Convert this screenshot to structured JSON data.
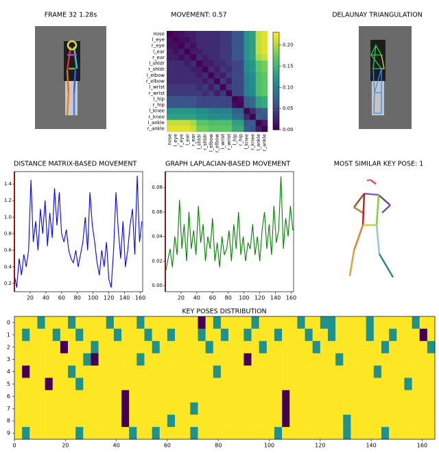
{
  "images": [
    {
      "title": "FRAME 32 1.28s"
    },
    {
      "title": "DELAUNAY TRIANGULATION"
    },
    {
      "title": "MOST SIMILAR KEY POSE: 1"
    }
  ],
  "chart_data": [
    {
      "type": "heatmap",
      "title": "MOVEMENT: 0.57",
      "labels": [
        "nose",
        "l_eye",
        "r_eye",
        "l_ear",
        "r_ear",
        "l_shldr",
        "r_shldr",
        "l_elbow",
        "r_elbow",
        "l_wrist",
        "r_wrist",
        "l_hip",
        "r_hip",
        "l_knee",
        "r_knee",
        "l_ankle",
        "r_ankle"
      ],
      "colormap": "viridis",
      "clim": [
        0,
        0.23
      ],
      "colorbar": true,
      "cticks": [
        {
          "value": 0,
          "label": "0.00"
        },
        0.05,
        {
          "value": 0.1,
          "label": "0.10"
        },
        0.15,
        {
          "value": 0.2,
          "label": "0.20"
        }
      ],
      "z": [
        [
          0,
          0.01,
          0.01,
          0.02,
          0.02,
          0.03,
          0.03,
          0.03,
          0.03,
          0.04,
          0.04,
          0.06,
          0.06,
          0.12,
          0.13,
          0.21,
          0.22
        ],
        [
          0.01,
          0,
          0.01,
          0.01,
          0.02,
          0.03,
          0.03,
          0.03,
          0.03,
          0.04,
          0.04,
          0.06,
          0.06,
          0.12,
          0.13,
          0.21,
          0.22
        ],
        [
          0.01,
          0.01,
          0,
          0.02,
          0.01,
          0.03,
          0.03,
          0.03,
          0.03,
          0.04,
          0.04,
          0.06,
          0.06,
          0.12,
          0.13,
          0.21,
          0.22
        ],
        [
          0.02,
          0.01,
          0.02,
          0,
          0.02,
          0.02,
          0.03,
          0.03,
          0.03,
          0.04,
          0.04,
          0.06,
          0.06,
          0.12,
          0.13,
          0.21,
          0.22
        ],
        [
          0.02,
          0.02,
          0.01,
          0.02,
          0,
          0.03,
          0.02,
          0.03,
          0.03,
          0.04,
          0.04,
          0.06,
          0.06,
          0.12,
          0.13,
          0.2,
          0.21
        ],
        [
          0.03,
          0.03,
          0.03,
          0.02,
          0.03,
          0,
          0.02,
          0.02,
          0.03,
          0.03,
          0.04,
          0.05,
          0.05,
          0.11,
          0.12,
          0.17,
          0.18
        ],
        [
          0.03,
          0.03,
          0.03,
          0.03,
          0.02,
          0.02,
          0,
          0.03,
          0.02,
          0.04,
          0.03,
          0.05,
          0.05,
          0.11,
          0.12,
          0.17,
          0.18
        ],
        [
          0.03,
          0.03,
          0.03,
          0.03,
          0.03,
          0.02,
          0.03,
          0,
          0.03,
          0.02,
          0.04,
          0.05,
          0.05,
          0.1,
          0.11,
          0.16,
          0.17
        ],
        [
          0.03,
          0.03,
          0.03,
          0.03,
          0.03,
          0.03,
          0.02,
          0.03,
          0,
          0.04,
          0.02,
          0.05,
          0.05,
          0.1,
          0.11,
          0.16,
          0.17
        ],
        [
          0.04,
          0.04,
          0.04,
          0.04,
          0.04,
          0.03,
          0.04,
          0.02,
          0.04,
          0,
          0.04,
          0.05,
          0.05,
          0.1,
          0.11,
          0.16,
          0.17
        ],
        [
          0.04,
          0.04,
          0.04,
          0.04,
          0.04,
          0.04,
          0.03,
          0.04,
          0.02,
          0.04,
          0,
          0.05,
          0.05,
          0.1,
          0.11,
          0.16,
          0.17
        ],
        [
          0.06,
          0.06,
          0.06,
          0.06,
          0.06,
          0.05,
          0.05,
          0.05,
          0.05,
          0.05,
          0.05,
          0,
          0.01,
          0.07,
          0.08,
          0.13,
          0.14
        ],
        [
          0.06,
          0.06,
          0.06,
          0.06,
          0.06,
          0.05,
          0.05,
          0.05,
          0.05,
          0.05,
          0.05,
          0.01,
          0,
          0.07,
          0.08,
          0.13,
          0.14
        ],
        [
          0.12,
          0.12,
          0.12,
          0.12,
          0.12,
          0.11,
          0.11,
          0.1,
          0.1,
          0.1,
          0.1,
          0.07,
          0.07,
          0,
          0.03,
          0.06,
          0.07
        ],
        [
          0.13,
          0.13,
          0.13,
          0.13,
          0.13,
          0.12,
          0.12,
          0.11,
          0.11,
          0.11,
          0.11,
          0.08,
          0.08,
          0.03,
          0,
          0.07,
          0.06
        ],
        [
          0.21,
          0.21,
          0.21,
          0.21,
          0.2,
          0.17,
          0.17,
          0.16,
          0.16,
          0.16,
          0.16,
          0.13,
          0.13,
          0.06,
          0.07,
          0,
          0.02
        ],
        [
          0.22,
          0.22,
          0.22,
          0.22,
          0.21,
          0.18,
          0.18,
          0.17,
          0.17,
          0.17,
          0.17,
          0.14,
          0.14,
          0.07,
          0.06,
          0.02,
          0
        ]
      ]
    },
    {
      "type": "line",
      "title": "DISTANCE MATRIX-BASED MOVEMENT",
      "x": [
        0,
        3,
        6,
        9,
        12,
        15,
        18,
        21,
        24,
        27,
        30,
        33,
        36,
        39,
        42,
        45,
        48,
        51,
        54,
        57,
        60,
        63,
        66,
        69,
        72,
        75,
        78,
        81,
        84,
        87,
        90,
        93,
        96,
        99,
        102,
        105,
        108,
        111,
        114,
        117,
        120,
        123,
        126,
        129,
        132,
        135,
        138,
        141,
        144,
        147,
        150,
        153,
        156,
        159,
        162
      ],
      "series": [
        {
          "color": "#0000ff",
          "values": [
            0.3,
            0.15,
            0.5,
            0.3,
            0.55,
            0.4,
            0.6,
            1.45,
            0.7,
            0.95,
            0.6,
            1.1,
            0.8,
            1.2,
            0.65,
            1.05,
            0.75,
            1.35,
            0.9,
            1.3,
            0.8,
            0.7,
            0.85,
            0.6,
            0.5,
            0.45,
            0.6,
            0.4,
            0.55,
            0.7,
            1.0,
            0.6,
            1.3,
            0.9,
            0.7,
            0.45,
            0.3,
            0.6,
            0.4,
            0.7,
            0.25,
            0.15,
            0.6,
            1.3,
            0.85,
            0.5,
            0.95,
            0.4,
            0.6,
            0.9,
            1.1,
            0.55,
            1.5,
            0.7,
            0.95
          ]
        }
      ],
      "xlim": [
        0,
        163
      ],
      "ylim": [
        0.1,
        1.55
      ],
      "xticks": [
        20,
        40,
        60,
        80,
        100,
        120,
        140,
        160
      ],
      "yticks": [
        0.2,
        0.4,
        0.6,
        0.8,
        {
          "value": 1,
          "label": "1.0"
        },
        1.2,
        1.4
      ],
      "cursor": 0,
      "cursor_color": "#d62728"
    },
    {
      "type": "line",
      "title": "GRAPH LAPLACIAN-BASED MOVEMENT",
      "x": [
        0,
        3,
        6,
        9,
        12,
        15,
        18,
        21,
        24,
        27,
        30,
        33,
        36,
        39,
        42,
        45,
        48,
        51,
        54,
        57,
        60,
        63,
        66,
        69,
        72,
        75,
        78,
        81,
        84,
        87,
        90,
        93,
        96,
        99,
        102,
        105,
        108,
        111,
        114,
        117,
        120,
        123,
        126,
        129,
        132,
        135,
        138,
        141,
        144,
        147,
        150,
        153,
        156,
        159,
        162
      ],
      "series": [
        {
          "color": "#008000",
          "values": [
            0.01,
            0.02,
            0.03,
            0.015,
            0.04,
            0.025,
            0.07,
            0.03,
            0.05,
            0.02,
            0.06,
            0.03,
            0.045,
            0.025,
            0.065,
            0.035,
            0.05,
            0.02,
            0.04,
            0.03,
            0.055,
            0.02,
            0.035,
            0.015,
            0.04,
            0.025,
            0.03,
            0.045,
            0.02,
            0.05,
            0.03,
            0.06,
            0.025,
            0.04,
            0.02,
            0.035,
            0.03,
            0.05,
            0.025,
            0.04,
            0.02,
            0.045,
            0.06,
            0.03,
            0.05,
            0.025,
            0.065,
            0.035,
            0.045,
            0.089,
            0.03,
            0.055,
            0.04,
            0.065,
            0.045
          ]
        }
      ],
      "xlim": [
        0,
        163
      ],
      "ylim": [
        -0.005,
        0.093
      ],
      "xticks": [
        20,
        40,
        60,
        80,
        100,
        120,
        140,
        160
      ],
      "yticks": [
        {
          "value": 0,
          "label": "0.00"
        },
        0.02,
        0.04,
        0.06,
        0.08
      ],
      "cursor": 0,
      "cursor_color": "#d62728"
    },
    {
      "type": "heatmap",
      "title": "KEY POSES DISTRIBUTION",
      "colormap": "viridis",
      "clim": [
        0,
        1
      ],
      "x": [
        0,
        3,
        6,
        9,
        12,
        15,
        18,
        21,
        24,
        27,
        30,
        33,
        36,
        39,
        42,
        45,
        48,
        51,
        54,
        57,
        60,
        63,
        66,
        69,
        72,
        75,
        78,
        81,
        84,
        87,
        90,
        93,
        96,
        99,
        102,
        105,
        108,
        111,
        114,
        117,
        120,
        123,
        126,
        129,
        132,
        135,
        138,
        141,
        144,
        147,
        150,
        153,
        156,
        159,
        162
      ],
      "xlim": [
        0,
        165
      ],
      "xticks": [
        0,
        20,
        40,
        60,
        80,
        100,
        120,
        140,
        160
      ],
      "rows": [
        "0",
        "1",
        "2",
        "3",
        "4",
        "5",
        "6",
        "7",
        "8",
        "9"
      ],
      "z": [
        [
          1,
          1,
          1,
          0.5,
          1,
          1,
          1,
          0.5,
          1,
          1,
          1,
          1,
          0.5,
          1,
          1,
          1,
          0.5,
          1,
          1,
          1,
          1,
          1,
          1,
          1,
          0,
          1,
          0.5,
          1,
          1,
          1,
          1,
          0.5,
          1,
          1,
          1,
          1,
          1,
          0.5,
          1,
          1,
          0.5,
          0.5,
          1,
          1,
          1,
          1,
          0.5,
          1,
          1,
          1,
          1,
          1,
          0.5,
          1,
          1
        ],
        [
          1,
          0.5,
          1,
          1,
          1,
          0.5,
          1,
          1,
          0.5,
          1,
          1,
          1,
          1,
          0.5,
          1,
          1,
          1,
          0.5,
          1,
          1,
          0.5,
          1,
          1,
          1,
          0.5,
          1,
          1,
          0.5,
          1,
          1,
          0.5,
          1,
          1,
          1,
          0.5,
          1,
          1,
          1,
          0.5,
          1,
          1,
          0.5,
          1,
          1,
          1,
          1,
          0.5,
          1,
          1,
          0.5,
          1,
          1,
          1,
          0,
          1
        ],
        [
          1,
          1,
          1,
          1,
          1,
          1,
          0,
          1,
          1,
          1,
          0.5,
          1,
          1,
          1,
          1,
          1,
          1,
          1,
          0.5,
          1,
          1,
          1,
          1,
          1,
          1,
          0.5,
          1,
          1,
          1,
          1,
          1,
          1,
          0.5,
          1,
          1,
          1,
          1,
          1,
          1,
          0.5,
          1,
          1,
          1,
          1,
          1,
          1,
          1,
          1,
          0.5,
          1,
          1,
          1,
          1,
          1,
          0.5
        ],
        [
          1,
          1,
          1,
          1,
          1,
          1,
          1,
          1,
          1,
          0.5,
          0,
          1,
          1,
          1,
          1,
          1,
          0.5,
          1,
          1,
          1,
          1,
          1,
          1,
          1,
          1,
          1,
          1,
          1,
          1,
          1,
          0,
          1,
          1,
          1,
          1,
          1,
          1,
          1,
          1,
          1,
          1,
          1,
          0.5,
          1,
          1,
          1,
          1,
          1,
          1,
          1,
          1,
          1,
          1,
          1,
          1
        ],
        [
          1,
          0,
          1,
          1,
          1,
          1,
          1,
          0.5,
          1,
          1,
          1,
          1,
          1,
          1,
          1,
          1,
          1,
          1,
          1,
          1,
          1,
          1,
          1,
          1,
          1,
          1,
          0.5,
          1,
          1,
          1,
          1,
          1,
          1,
          1,
          1,
          1,
          1,
          1,
          1,
          1,
          1,
          1,
          1,
          1,
          1,
          1,
          1,
          0.5,
          1,
          1,
          1,
          1,
          1,
          1,
          1
        ],
        [
          1,
          1,
          1,
          1,
          0,
          1,
          1,
          1,
          0.5,
          1,
          1,
          1,
          1,
          1,
          1,
          1,
          1,
          1,
          1,
          1,
          1,
          1,
          1,
          1,
          1,
          1,
          1,
          1,
          1,
          1,
          1,
          1,
          1,
          1,
          1,
          1,
          1,
          1,
          1,
          1,
          1,
          1,
          1,
          1,
          1,
          1,
          1,
          1,
          1,
          1,
          1,
          0.5,
          1,
          1,
          1
        ],
        [
          1,
          1,
          1,
          1,
          1,
          1,
          1,
          1,
          1,
          1,
          1,
          1,
          1,
          1,
          0,
          1,
          1,
          1,
          1,
          1,
          1,
          1,
          1,
          1,
          1,
          1,
          1,
          1,
          1,
          1,
          1,
          1,
          1,
          1,
          1,
          0,
          1,
          1,
          1,
          1,
          1,
          1,
          1,
          1,
          1,
          1,
          1,
          1,
          1,
          1,
          1,
          1,
          1,
          1,
          1
        ],
        [
          1,
          1,
          1,
          1,
          1,
          1,
          1,
          1,
          1,
          1,
          1,
          1,
          1,
          1,
          0,
          1,
          1,
          1,
          1,
          1,
          1,
          1,
          1,
          0.5,
          1,
          1,
          1,
          1,
          1,
          1,
          1,
          1,
          1,
          1,
          1,
          0,
          1,
          1,
          1,
          1,
          1,
          1,
          1,
          1,
          1,
          1,
          1,
          1,
          1,
          1,
          1,
          1,
          1,
          1,
          1
        ],
        [
          1,
          1,
          1,
          1,
          1,
          1,
          1,
          1,
          1,
          1,
          1,
          1,
          1,
          1,
          0,
          1,
          1,
          1,
          1,
          1,
          0.5,
          1,
          1,
          1,
          1,
          1,
          1,
          1,
          1,
          1,
          1,
          1,
          1,
          1,
          1,
          0,
          1,
          1,
          1,
          1,
          1,
          1,
          1,
          0.5,
          1,
          1,
          1,
          1,
          1,
          1,
          1,
          1,
          1,
          1,
          1
        ],
        [
          1,
          0.5,
          1,
          1,
          1,
          1,
          1,
          1,
          0.5,
          1,
          1,
          1,
          1,
          1,
          1,
          0.5,
          1,
          1,
          0.5,
          1,
          1,
          1,
          1,
          0.5,
          1,
          1,
          1,
          1,
          1,
          1,
          1,
          1,
          1,
          1,
          0.5,
          1,
          1,
          1,
          1,
          1,
          1,
          1,
          1,
          0.5,
          1,
          1,
          1,
          1,
          0.5,
          1,
          1,
          1,
          1,
          1,
          1
        ]
      ]
    }
  ]
}
